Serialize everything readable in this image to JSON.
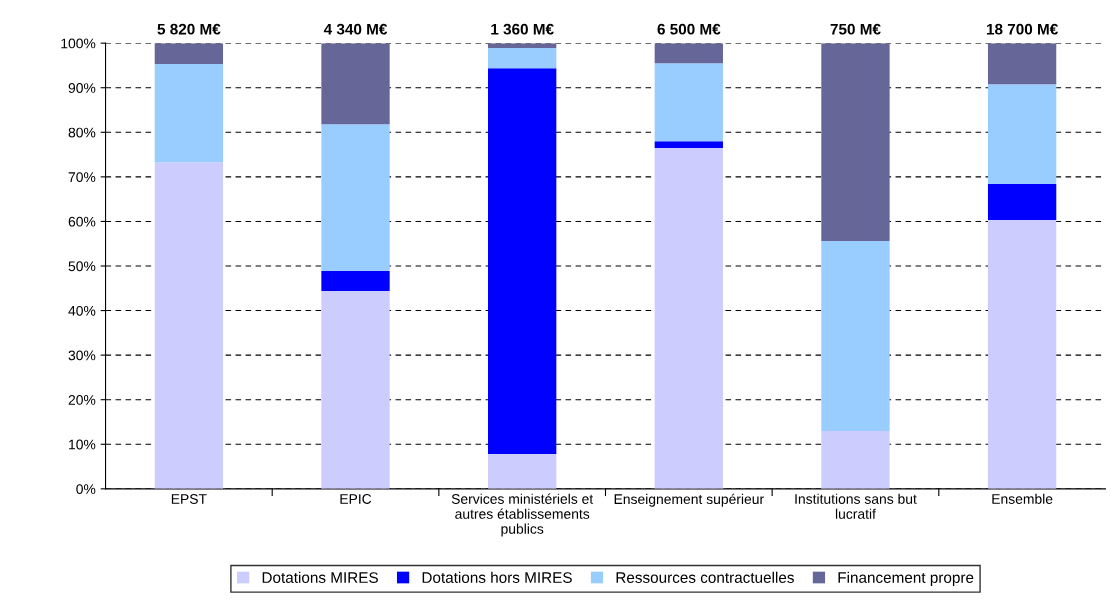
{
  "chart_data": {
    "type": "bar",
    "stacked": true,
    "categories": [
      "EPST",
      "EPIC",
      "Services ministériels et autres établissements publics",
      "Enseignement supérieur",
      "Institutions sans but lucratif",
      "Ensemble"
    ],
    "series": [
      {
        "name": "Dotations MIRES",
        "color": "#ccccff",
        "values": [
          73.3,
          44.4,
          7.8,
          76.5,
          13.0,
          60.3
        ]
      },
      {
        "name": "Dotations hors MIRES",
        "color": "#0000ff",
        "values": [
          0,
          4.5,
          86.6,
          1.5,
          0,
          8.1
        ]
      },
      {
        "name": "Ressources contractuelles",
        "color": "#99ccff",
        "values": [
          22.0,
          32.9,
          4.5,
          17.5,
          42.6,
          22.4
        ]
      },
      {
        "name": "Financement propre",
        "color": "#666699",
        "values": [
          4.7,
          18.2,
          1.1,
          4.5,
          44.4,
          9.2
        ]
      }
    ],
    "annotations": [
      {
        "text": "5 820 M€",
        "x": "EPST",
        "y": 100
      },
      {
        "text": "4 340 M€",
        "x": "EPIC",
        "y": 100
      },
      {
        "text": "1 360 M€",
        "x": "Services ministériels et autres établissements publics",
        "y": 100
      },
      {
        "text": "6 500 M€",
        "x": "Enseignement supérieur",
        "y": 100
      },
      {
        "text": "750 M€",
        "x": "Institutions sans but lucratif",
        "y": 100
      },
      {
        "text": "18 700 M€",
        "x": "Ensemble",
        "y": 100
      }
    ],
    "ylim": [
      0,
      100
    ],
    "yticks": [
      {
        "value": 0,
        "label": "0%"
      },
      {
        "value": 10,
        "label": "10%"
      },
      {
        "value": 20,
        "label": "20%"
      },
      {
        "value": 30,
        "label": "30%"
      },
      {
        "value": 40,
        "label": "40%"
      },
      {
        "value": 50,
        "label": "50%"
      },
      {
        "value": 60,
        "label": "60%"
      },
      {
        "value": 70,
        "label": "70%"
      },
      {
        "value": 80,
        "label": "80%"
      },
      {
        "value": 90,
        "label": "90%"
      },
      {
        "value": 100,
        "label": "100%"
      }
    ],
    "grid": "y",
    "legend": "bottom"
  }
}
